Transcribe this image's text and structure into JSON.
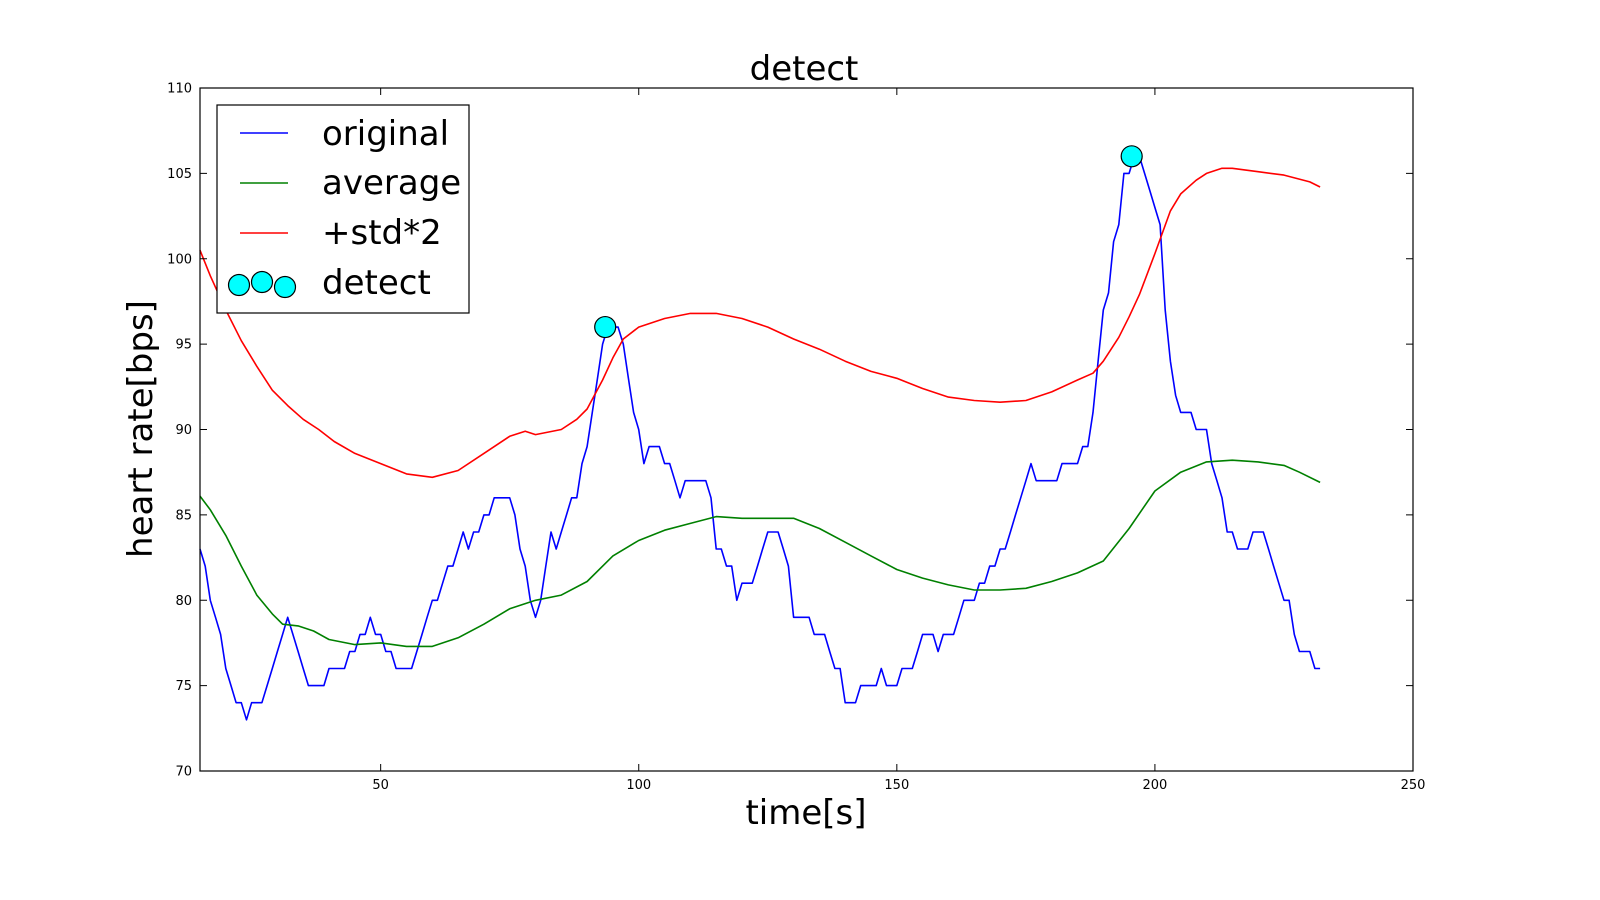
{
  "chart_data": {
    "type": "line",
    "title": "detect",
    "xlabel": "time[s]",
    "ylabel": "heart rate[bps]",
    "xlim": [
      15,
      250
    ],
    "ylim": [
      70,
      110
    ],
    "xticks": [
      50,
      100,
      150,
      200,
      250
    ],
    "yticks": [
      70,
      75,
      80,
      85,
      90,
      95,
      100,
      105,
      110
    ],
    "grid": false,
    "legend_position": "top-left",
    "colors": {
      "original": "#0000ff",
      "average": "#008000",
      "std": "#ff0000",
      "detect_fill": "#00ffff",
      "detect_edge": "#000000"
    },
    "series": [
      {
        "name": "original",
        "x": [
          15,
          16,
          17,
          18,
          19,
          20,
          21,
          22,
          23,
          24,
          25,
          26,
          27,
          28,
          29,
          30,
          31,
          32,
          33,
          34,
          35,
          36,
          37,
          38,
          39,
          40,
          41,
          42,
          43,
          44,
          45,
          46,
          47,
          48,
          49,
          50,
          51,
          52,
          53,
          54,
          55,
          56,
          57,
          58,
          59,
          60,
          61,
          62,
          63,
          64,
          65,
          66,
          67,
          68,
          69,
          70,
          71,
          72,
          73,
          74,
          75,
          76,
          77,
          78,
          79,
          80,
          81,
          82,
          83,
          84,
          85,
          86,
          87,
          88,
          89,
          90,
          91,
          92,
          93,
          94,
          95,
          96,
          97,
          98,
          99,
          100,
          101,
          102,
          103,
          104,
          105,
          106,
          107,
          108,
          109,
          110,
          111,
          112,
          113,
          114,
          115,
          116,
          117,
          118,
          119,
          120,
          121,
          122,
          123,
          124,
          125,
          126,
          127,
          128,
          129,
          130,
          131,
          132,
          133,
          134,
          135,
          136,
          137,
          138,
          139,
          140,
          141,
          142,
          143,
          144,
          145,
          146,
          147,
          148,
          149,
          150,
          151,
          152,
          153,
          154,
          155,
          156,
          157,
          158,
          159,
          160,
          161,
          162,
          163,
          164,
          165,
          166,
          167,
          168,
          169,
          170,
          171,
          172,
          173,
          174,
          175,
          176,
          177,
          178,
          179,
          180,
          181,
          182,
          183,
          184,
          185,
          186,
          187,
          188,
          189,
          190,
          191,
          192,
          193,
          194,
          195,
          196,
          197,
          198,
          199,
          200,
          201,
          202,
          203,
          204,
          205,
          206,
          207,
          208,
          209,
          210,
          211,
          212,
          213,
          214,
          215,
          216,
          217,
          218,
          219,
          220,
          221,
          222,
          223,
          224,
          225,
          226,
          227,
          228,
          229,
          230,
          231,
          232
        ],
        "values": [
          83,
          82,
          80,
          79,
          78,
          76,
          75,
          74,
          74,
          73,
          74,
          74,
          74,
          75,
          76,
          77,
          78,
          79,
          78,
          77,
          76,
          75,
          75,
          75,
          75,
          76,
          76,
          76,
          76,
          77,
          77,
          78,
          78,
          79,
          78,
          78,
          77,
          77,
          76,
          76,
          76,
          76,
          77,
          78,
          79,
          80,
          80,
          81,
          82,
          82,
          83,
          84,
          83,
          84,
          84,
          85,
          85,
          86,
          86,
          86,
          86,
          85,
          83,
          82,
          80,
          79,
          80,
          82,
          84,
          83,
          84,
          85,
          86,
          86,
          88,
          89,
          91,
          93,
          95,
          96,
          96,
          96,
          95,
          93,
          91,
          90,
          88,
          89,
          89,
          89,
          88,
          88,
          87,
          86,
          87,
          87,
          87,
          87,
          87,
          86,
          83,
          83,
          82,
          82,
          80,
          81,
          81,
          81,
          82,
          83,
          84,
          84,
          84,
          83,
          82,
          79,
          79,
          79,
          79,
          78,
          78,
          78,
          77,
          76,
          76,
          74,
          74,
          74,
          75,
          75,
          75,
          75,
          76,
          75,
          75,
          75,
          76,
          76,
          76,
          77,
          78,
          78,
          78,
          77,
          78,
          78,
          78,
          79,
          80,
          80,
          80,
          81,
          81,
          82,
          82,
          83,
          83,
          84,
          85,
          86,
          87,
          88,
          87,
          87,
          87,
          87,
          87,
          88,
          88,
          88,
          88,
          89,
          89,
          91,
          94,
          97,
          98,
          101,
          102,
          105,
          105,
          106,
          106,
          105,
          104,
          103,
          102,
          97,
          94,
          92,
          91,
          91,
          91,
          90,
          90,
          90,
          88,
          87,
          86,
          84,
          84,
          83,
          83,
          83,
          84,
          84,
          84,
          83,
          82,
          81,
          80,
          80,
          78,
          77,
          77,
          77,
          76,
          76
        ]
      },
      {
        "name": "average",
        "x": [
          15,
          17,
          20,
          23,
          26,
          29,
          31,
          34,
          37,
          40,
          45,
          50,
          55,
          60,
          65,
          70,
          75,
          80,
          85,
          90,
          95,
          100,
          105,
          110,
          115,
          120,
          125,
          130,
          135,
          140,
          145,
          150,
          155,
          160,
          165,
          170,
          175,
          180,
          185,
          190,
          195,
          200,
          205,
          210,
          215,
          220,
          225,
          228,
          232
        ],
        "values": [
          86.1,
          85.3,
          83.8,
          82.0,
          80.3,
          79.2,
          78.6,
          78.5,
          78.2,
          77.7,
          77.4,
          77.5,
          77.3,
          77.3,
          77.8,
          78.6,
          79.5,
          80.0,
          80.3,
          81.1,
          82.6,
          83.5,
          84.1,
          84.5,
          84.9,
          84.8,
          84.8,
          84.8,
          84.2,
          83.4,
          82.6,
          81.8,
          81.3,
          80.9,
          80.6,
          80.6,
          80.7,
          81.1,
          81.6,
          82.3,
          84.2,
          86.4,
          87.5,
          88.1,
          88.2,
          88.1,
          87.9,
          87.5,
          86.9
        ]
      },
      {
        "name": "+std*2",
        "x": [
          15,
          17,
          20,
          23,
          26,
          29,
          32,
          35,
          38,
          41,
          45,
          50,
          55,
          60,
          65,
          70,
          75,
          78,
          80,
          85,
          88,
          90,
          93,
          95,
          97,
          100,
          105,
          110,
          115,
          120,
          125,
          130,
          135,
          140,
          145,
          150,
          155,
          160,
          165,
          170,
          175,
          180,
          185,
          188,
          190,
          193,
          195,
          197,
          200,
          203,
          205,
          208,
          210,
          213,
          215,
          220,
          225,
          230,
          232
        ],
        "values": [
          100.5,
          99.0,
          97.0,
          95.2,
          93.7,
          92.3,
          91.4,
          90.6,
          90.0,
          89.3,
          88.6,
          88.0,
          87.4,
          87.2,
          87.6,
          88.6,
          89.6,
          89.9,
          89.7,
          90.0,
          90.6,
          91.2,
          92.9,
          94.2,
          95.3,
          96.0,
          96.5,
          96.8,
          96.8,
          96.5,
          96.0,
          95.3,
          94.7,
          94.0,
          93.4,
          93.0,
          92.4,
          91.9,
          91.7,
          91.6,
          91.7,
          92.2,
          92.9,
          93.3,
          94.0,
          95.4,
          96.6,
          97.9,
          100.3,
          102.8,
          103.8,
          104.6,
          105.0,
          105.3,
          105.3,
          105.1,
          104.9,
          104.5,
          104.2
        ]
      }
    ],
    "detect": {
      "name": "detect",
      "x": [
        93.5,
        195.5
      ],
      "y": [
        96,
        106
      ]
    }
  }
}
